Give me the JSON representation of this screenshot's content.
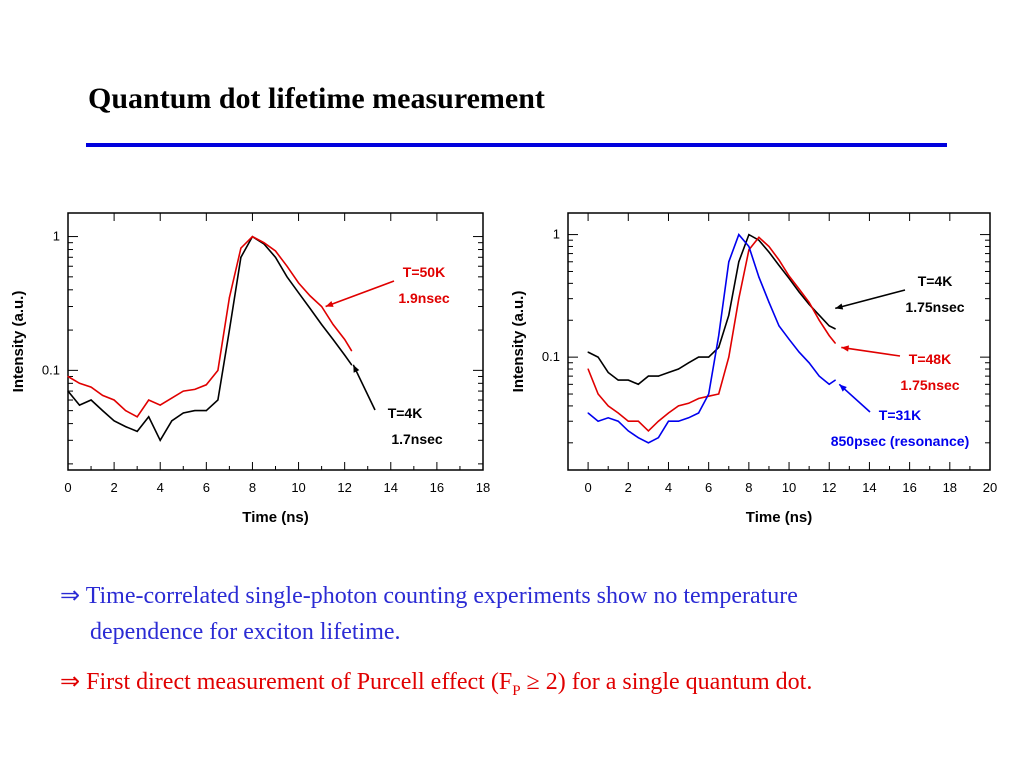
{
  "slide": {
    "title": "Quantum dot lifetime measurement",
    "accent_color": "#0000dd",
    "bullets": [
      {
        "arrow": "⇒",
        "line1": "Time-correlated single-photon counting experiments show no temperature",
        "line2": "dependence for exciton lifetime.",
        "color": "#2b2bd4"
      },
      {
        "arrow": "⇒",
        "pre": "First direct measurement of Purcell effect (F",
        "sub": "P",
        "post": " ≥ 2)  for a single quantum dot.",
        "color": "#e00000"
      }
    ]
  },
  "chart_data": [
    {
      "type": "line",
      "xlabel": "Time (ns)",
      "ylabel": "Intensity (a.u.)",
      "xlim": [
        0,
        18
      ],
      "ylim": [
        0.018,
        1.5
      ],
      "yscale": "log",
      "xticks": [
        0,
        2,
        4,
        6,
        8,
        10,
        12,
        14,
        16,
        18
      ],
      "yticks": [
        0.1,
        1
      ],
      "ytick_labels": [
        "0.1",
        "1"
      ],
      "series": [
        {
          "color": "#000000",
          "x": [
            0,
            0.5,
            1,
            1.5,
            2,
            2.5,
            3,
            3.5,
            4,
            4.5,
            5,
            5.5,
            6,
            6.5,
            7,
            7.5,
            8,
            8.5,
            9,
            9.5,
            10,
            10.5,
            11,
            11.5,
            12,
            12.3
          ],
          "y": [
            0.07,
            0.055,
            0.06,
            0.05,
            0.042,
            0.038,
            0.035,
            0.045,
            0.03,
            0.042,
            0.048,
            0.05,
            0.05,
            0.06,
            0.2,
            0.7,
            1.0,
            0.88,
            0.7,
            0.5,
            0.38,
            0.29,
            0.22,
            0.17,
            0.13,
            0.11
          ]
        },
        {
          "color": "#e00000",
          "x": [
            0,
            0.5,
            1,
            1.5,
            2,
            2.5,
            3,
            3.5,
            4,
            4.5,
            5,
            5.5,
            6,
            6.5,
            7,
            7.5,
            8,
            8.5,
            9,
            9.5,
            10,
            10.5,
            11,
            11.5,
            12,
            12.3
          ],
          "y": [
            0.09,
            0.08,
            0.075,
            0.065,
            0.06,
            0.05,
            0.045,
            0.06,
            0.055,
            0.062,
            0.07,
            0.072,
            0.078,
            0.1,
            0.35,
            0.82,
            1.0,
            0.9,
            0.78,
            0.6,
            0.45,
            0.36,
            0.3,
            0.22,
            0.17,
            0.14
          ]
        }
      ],
      "annotations": [
        {
          "lines": [
            "T=50K",
            "1.9nsec"
          ],
          "color": "#e00000",
          "x": 11.0,
          "y": 0.3
        },
        {
          "lines": [
            "T=4K",
            "1.7nsec"
          ],
          "color": "#000000",
          "x": 12.2,
          "y": 0.11
        }
      ]
    },
    {
      "type": "line",
      "xlabel": "Time (ns)",
      "ylabel": "Intensity (a.u.)",
      "xlim": [
        -1,
        20
      ],
      "ylim": [
        0.012,
        1.5
      ],
      "yscale": "log",
      "xticks": [
        0,
        2,
        4,
        6,
        8,
        10,
        12,
        14,
        16,
        18,
        20
      ],
      "yticks": [
        0.1,
        1
      ],
      "ytick_labels": [
        "0.1",
        "1"
      ],
      "series": [
        {
          "color": "#000000",
          "x": [
            0,
            0.5,
            1,
            1.5,
            2,
            2.5,
            3,
            3.5,
            4,
            4.5,
            5,
            5.5,
            6,
            6.5,
            7,
            7.5,
            8,
            8.5,
            9,
            9.5,
            10,
            10.5,
            11,
            11.5,
            12,
            12.3
          ],
          "y": [
            0.11,
            0.1,
            0.075,
            0.065,
            0.065,
            0.06,
            0.07,
            0.07,
            0.075,
            0.08,
            0.09,
            0.1,
            0.1,
            0.12,
            0.22,
            0.6,
            1.0,
            0.9,
            0.72,
            0.56,
            0.44,
            0.34,
            0.27,
            0.22,
            0.18,
            0.17
          ]
        },
        {
          "color": "#e00000",
          "x": [
            0,
            0.5,
            1,
            1.5,
            2,
            2.5,
            3,
            3.5,
            4,
            4.5,
            5,
            5.5,
            6,
            6.5,
            7,
            7.5,
            8,
            8.5,
            9,
            9.5,
            10,
            10.5,
            11,
            11.5,
            12,
            12.3
          ],
          "y": [
            0.08,
            0.05,
            0.04,
            0.035,
            0.03,
            0.03,
            0.025,
            0.03,
            0.035,
            0.04,
            0.042,
            0.046,
            0.048,
            0.05,
            0.1,
            0.3,
            0.75,
            0.95,
            0.8,
            0.62,
            0.46,
            0.36,
            0.28,
            0.2,
            0.15,
            0.13
          ]
        },
        {
          "color": "#0000ee",
          "x": [
            0,
            0.5,
            1,
            1.5,
            2,
            2.5,
            3,
            3.5,
            4,
            4.5,
            5,
            5.5,
            6,
            6.5,
            7,
            7.5,
            8,
            8.5,
            9,
            9.5,
            10,
            10.5,
            11,
            11.5,
            12,
            12.3
          ],
          "y": [
            0.035,
            0.03,
            0.032,
            0.03,
            0.025,
            0.022,
            0.02,
            0.022,
            0.03,
            0.03,
            0.032,
            0.035,
            0.05,
            0.15,
            0.6,
            1.0,
            0.8,
            0.45,
            0.28,
            0.18,
            0.14,
            0.11,
            0.09,
            0.07,
            0.06,
            0.065
          ]
        }
      ],
      "annotations": [
        {
          "lines": [
            "T=4K",
            "1.75nsec"
          ],
          "color": "#000000",
          "x": 12.1,
          "y": 0.25
        },
        {
          "lines": [
            "T=48K",
            "1.75nsec"
          ],
          "color": "#e00000",
          "x": 12.4,
          "y": 0.12
        },
        {
          "lines": [
            "T=31K",
            "850psec (resonance)"
          ],
          "color": "#0000ee",
          "x": 12.3,
          "y": 0.06
        }
      ]
    }
  ]
}
